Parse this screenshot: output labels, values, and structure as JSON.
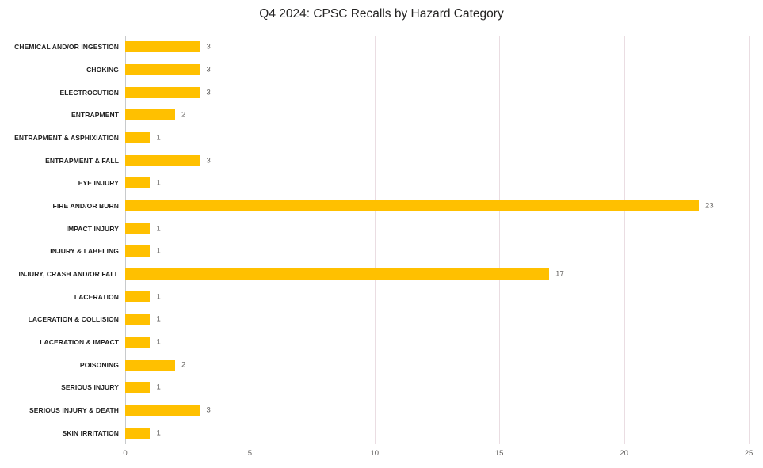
{
  "title": "Q4 2024: CPSC Recalls by Hazard Category",
  "chart_data": {
    "type": "bar",
    "orientation": "horizontal",
    "title": "Q4 2024: CPSC Recalls by Hazard Category",
    "categories": [
      "CHEMICAL AND/OR INGESTION",
      "CHOKING",
      "ELECTROCUTION",
      "ENTRAPMENT",
      "ENTRAPMENT & ASPHIXIATION",
      "ENTRAPMENT & FALL",
      "EYE INJURY",
      "FIRE AND/OR BURN",
      "IMPACT INJURY",
      "INJURY & LABELING",
      "INJURY, CRASH AND/OR FALL",
      "LACERATION",
      "LACERATION & COLLISION",
      "LACERATION & IMPACT",
      "POISONING",
      "SERIOUS INJURY",
      "SERIOUS INJURY & DEATH",
      "SKIN IRRITATION"
    ],
    "values": [
      3,
      3,
      3,
      2,
      1,
      3,
      1,
      23,
      1,
      1,
      17,
      1,
      1,
      1,
      2,
      1,
      3,
      1
    ],
    "xlabel": "",
    "ylabel": "",
    "xlim": [
      0,
      25
    ],
    "x_ticks": [
      0,
      5,
      10,
      15,
      20,
      25
    ],
    "grid": "vertical-gridlines-on",
    "legend": "none",
    "data_labels": "shown-at-bar-end",
    "colors": {
      "bar": "#FFC000",
      "data_label": "#605E5C",
      "axis_tick_label": "#605E5C",
      "category_label": "#1f1f1f",
      "gridline": "#eadde2",
      "zero_line": "#c8cacc",
      "title": "#252423",
      "background": "#ffffff"
    }
  }
}
